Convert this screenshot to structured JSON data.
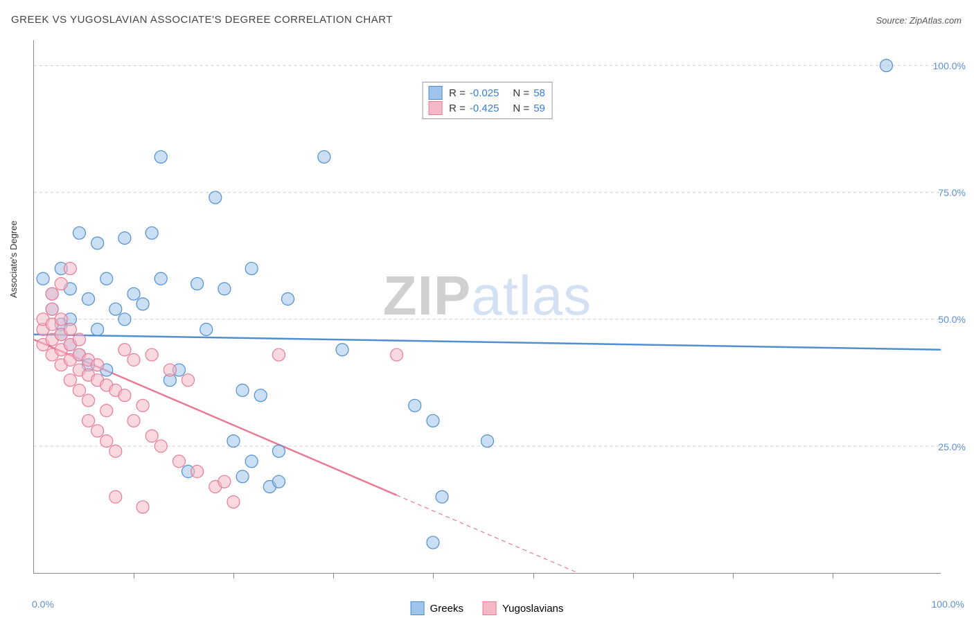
{
  "title": "GREEK VS YUGOSLAVIAN ASSOCIATE'S DEGREE CORRELATION CHART",
  "source": "Source: ZipAtlas.com",
  "ylabel": "Associate's Degree",
  "watermark": {
    "part1": "ZIP",
    "part2": "atlas"
  },
  "chart": {
    "type": "scatter",
    "background_color": "#ffffff",
    "grid_color": "#cccccc",
    "axis_color": "#888888",
    "tick_label_color": "#5b8fd6",
    "marker_radius": 9,
    "marker_opacity": 0.55,
    "xlim": [
      0,
      100
    ],
    "ylim": [
      0,
      105
    ],
    "yticks": [
      {
        "v": 25,
        "label": "25.0%"
      },
      {
        "v": 50,
        "label": "50.0%"
      },
      {
        "v": 75,
        "label": "75.0%"
      },
      {
        "v": 100,
        "label": "100.0%"
      }
    ],
    "xticks_minor": [
      11,
      22,
      33,
      44,
      55,
      66,
      77,
      88
    ],
    "xlabels": [
      {
        "v": 0,
        "label": "0.0%"
      },
      {
        "v": 100,
        "label": "100.0%"
      }
    ],
    "series": [
      {
        "name": "Greeks",
        "color_fill": "#9ec4ea",
        "color_stroke": "#4f8ed1",
        "R": "-0.025",
        "N": "58",
        "trend": {
          "x1": 0,
          "y1": 47,
          "x2": 100,
          "y2": 44,
          "dashed_from_x": null,
          "line_width": 2.5
        },
        "points": [
          [
            1,
            58
          ],
          [
            2,
            55
          ],
          [
            2,
            52
          ],
          [
            3,
            49
          ],
          [
            3,
            60
          ],
          [
            3,
            47
          ],
          [
            4,
            45
          ],
          [
            4,
            56
          ],
          [
            4,
            50
          ],
          [
            5,
            43
          ],
          [
            5,
            67
          ],
          [
            6,
            41
          ],
          [
            6,
            54
          ],
          [
            7,
            65
          ],
          [
            7,
            48
          ],
          [
            8,
            40
          ],
          [
            8,
            58
          ],
          [
            9,
            52
          ],
          [
            10,
            50
          ],
          [
            10,
            66
          ],
          [
            11,
            55
          ],
          [
            12,
            53
          ],
          [
            13,
            67
          ],
          [
            14,
            82
          ],
          [
            14,
            58
          ],
          [
            15,
            38
          ],
          [
            16,
            40
          ],
          [
            17,
            20
          ],
          [
            18,
            57
          ],
          [
            19,
            48
          ],
          [
            20,
            74
          ],
          [
            21,
            56
          ],
          [
            22,
            26
          ],
          [
            23,
            36
          ],
          [
            23,
            19
          ],
          [
            24,
            60
          ],
          [
            24,
            22
          ],
          [
            25,
            35
          ],
          [
            26,
            17
          ],
          [
            27,
            18
          ],
          [
            27,
            24
          ],
          [
            28,
            54
          ],
          [
            32,
            82
          ],
          [
            34,
            44
          ],
          [
            42,
            33
          ],
          [
            44,
            30
          ],
          [
            44,
            6
          ],
          [
            45,
            15
          ],
          [
            50,
            26
          ],
          [
            94,
            100
          ]
        ]
      },
      {
        "name": "Yugoslavians",
        "color_fill": "#f5b8c6",
        "color_stroke": "#e77b96",
        "R": "-0.425",
        "N": "59",
        "trend": {
          "x1": 0,
          "y1": 46,
          "x2": 60,
          "y2": 0,
          "dashed_from_x": 40,
          "line_width": 2.5
        },
        "points": [
          [
            1,
            48
          ],
          [
            1,
            45
          ],
          [
            1,
            50
          ],
          [
            2,
            52
          ],
          [
            2,
            46
          ],
          [
            2,
            43
          ],
          [
            2,
            49
          ],
          [
            2,
            55
          ],
          [
            3,
            44
          ],
          [
            3,
            47
          ],
          [
            3,
            41
          ],
          [
            3,
            50
          ],
          [
            3,
            57
          ],
          [
            4,
            42
          ],
          [
            4,
            45
          ],
          [
            4,
            38
          ],
          [
            4,
            48
          ],
          [
            4,
            60
          ],
          [
            5,
            40
          ],
          [
            5,
            43
          ],
          [
            5,
            36
          ],
          [
            5,
            46
          ],
          [
            6,
            39
          ],
          [
            6,
            42
          ],
          [
            6,
            34
          ],
          [
            6,
            30
          ],
          [
            7,
            38
          ],
          [
            7,
            41
          ],
          [
            7,
            28
          ],
          [
            8,
            37
          ],
          [
            8,
            32
          ],
          [
            8,
            26
          ],
          [
            9,
            36
          ],
          [
            9,
            24
          ],
          [
            9,
            15
          ],
          [
            10,
            35
          ],
          [
            10,
            44
          ],
          [
            11,
            42
          ],
          [
            11,
            30
          ],
          [
            12,
            33
          ],
          [
            12,
            13
          ],
          [
            13,
            27
          ],
          [
            13,
            43
          ],
          [
            14,
            25
          ],
          [
            15,
            40
          ],
          [
            16,
            22
          ],
          [
            17,
            38
          ],
          [
            18,
            20
          ],
          [
            20,
            17
          ],
          [
            21,
            18
          ],
          [
            22,
            14
          ],
          [
            27,
            43
          ],
          [
            40,
            43
          ]
        ]
      }
    ]
  },
  "stat_legend_labels": {
    "R": "R =",
    "N": "N ="
  },
  "series_legend": [
    {
      "label": "Greeks",
      "swatch_fill": "#9ec4ea",
      "swatch_stroke": "#4f8ed1"
    },
    {
      "label": "Yugoslavians",
      "swatch_fill": "#f5b8c6",
      "swatch_stroke": "#e77b96"
    }
  ]
}
